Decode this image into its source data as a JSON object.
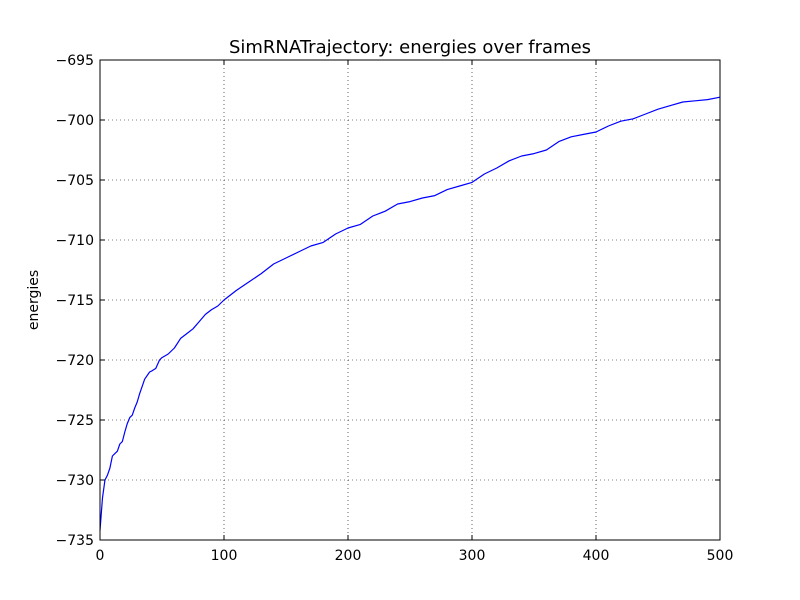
{
  "chart_data": {
    "type": "line",
    "title": "SimRNATrajectory: energies over frames",
    "xlabel": "",
    "ylabel": "energies",
    "xlim": [
      0,
      500
    ],
    "ylim": [
      -735,
      -695
    ],
    "grid": true,
    "x_ticks": [
      "0",
      "100",
      "200",
      "300",
      "400",
      "500"
    ],
    "y_ticks": [
      "−735",
      "−730",
      "−725",
      "−720",
      "−715",
      "−710",
      "−705",
      "−700",
      "−695"
    ],
    "line_color": "#0000ff",
    "series": [
      {
        "x": [
          0,
          2,
          4,
          6,
          8,
          10,
          12,
          14,
          16,
          18,
          20,
          22,
          24,
          26,
          28,
          30,
          32,
          34,
          36,
          38,
          40,
          42,
          45,
          48,
          50,
          55,
          60,
          65,
          70,
          75,
          80,
          85,
          90,
          95,
          100,
          110,
          120,
          130,
          140,
          150,
          160,
          170,
          180,
          190,
          200,
          210,
          220,
          230,
          240,
          250,
          260,
          270,
          280,
          290,
          300,
          310,
          320,
          330,
          340,
          350,
          360,
          370,
          380,
          390,
          400,
          410,
          420,
          430,
          440,
          450,
          460,
          470,
          480,
          490,
          500
        ],
        "values": [
          -734.2,
          -731.5,
          -730.0,
          -729.6,
          -729.0,
          -728.0,
          -727.8,
          -727.6,
          -727.0,
          -726.8,
          -726.0,
          -725.3,
          -724.8,
          -724.6,
          -724.0,
          -723.5,
          -722.8,
          -722.2,
          -721.6,
          -721.3,
          -721.0,
          -720.9,
          -720.7,
          -720.0,
          -719.8,
          -719.5,
          -719.0,
          -718.2,
          -717.8,
          -717.4,
          -716.8,
          -716.2,
          -715.8,
          -715.5,
          -715.0,
          -714.2,
          -713.5,
          -712.8,
          -712.0,
          -711.5,
          -711.0,
          -710.5,
          -710.2,
          -709.5,
          -709.0,
          -708.7,
          -708.0,
          -707.6,
          -707.0,
          -706.8,
          -706.5,
          -706.3,
          -705.8,
          -705.5,
          -705.2,
          -704.5,
          -704.0,
          -703.4,
          -703.0,
          -702.8,
          -702.5,
          -701.8,
          -701.4,
          -701.2,
          -701.0,
          -700.5,
          -700.1,
          -699.9,
          -699.5,
          -699.1,
          -698.8,
          -698.5,
          -698.4,
          -698.3,
          -698.1
        ]
      }
    ]
  }
}
